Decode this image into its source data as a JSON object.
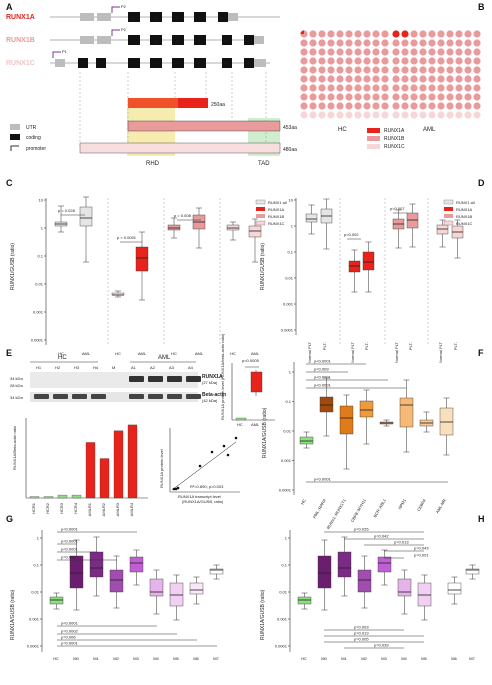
{
  "panels": {
    "A": "A",
    "B": "B",
    "C": "C",
    "D": "D",
    "E": "E",
    "F": "F",
    "G": "G",
    "H": "H"
  },
  "colors": {
    "runx1a": "#e8231c",
    "runx1b": "#e99a9a",
    "runx1c": "#f6d6d6",
    "rhd": "#f1e08a",
    "tad": "#b6e2b9",
    "hc": "#8ce07f",
    "all": "#e5e5e5"
  },
  "panelA": {
    "isoforms": [
      "RUNX1A",
      "RUNX1B",
      "RUNX1C"
    ],
    "promoters": [
      "P2",
      "P2",
      "P1"
    ],
    "exon_labels_a": [
      "3",
      "4",
      "5",
      "6",
      "7a"
    ],
    "exon_labels_b": [
      "1",
      "2",
      "3",
      "4",
      "5",
      "6",
      "7b",
      "8"
    ],
    "exon_labels_c": [
      "1",
      "2",
      "3",
      "4",
      "5",
      "6",
      "7b",
      "8"
    ],
    "protein_sizes": [
      "250aa",
      "453aa",
      "480aa"
    ],
    "legend": [
      "UTR",
      "coding",
      "promoter"
    ],
    "domains": [
      "RHD",
      "TAD"
    ]
  },
  "panelB": {
    "groups": [
      "HC",
      "AML"
    ],
    "legend": [
      "RUNX1A",
      "RUNX1B",
      "RUNX1C"
    ]
  },
  "panelC": {
    "ylabel": "RUNX1/GUSB (ratio)",
    "yticks": [
      "10",
      "1",
      "0.1",
      "0.01",
      "0.001",
      "0.0001"
    ],
    "xlabels": [
      "HC",
      "AML",
      "HC",
      "AML",
      "HC",
      "AML",
      "HC",
      "AML"
    ],
    "pvals": [
      "p = 0.028",
      "p < 0.0001",
      "p = 0.008"
    ],
    "legend": [
      "RUNX1 all",
      "RUNX1A",
      "RUNX1B",
      "RUNX1C"
    ]
  },
  "panelD": {
    "ylabel": "RUNX1/GUSB (ratio)",
    "yticks": [
      "10",
      "1",
      "0.1",
      "0.01",
      "0.001",
      "0.0001"
    ],
    "xlabels": [
      "Normal PLT",
      "PLT-",
      "Normal PLT",
      "PLT-",
      "Normal PLT",
      "PLT-",
      "Normal PLT",
      "PLT-"
    ],
    "pvals": [
      "p=0.002",
      "p=0.007"
    ],
    "legend": [
      "RUNX1 all",
      "RUNX1A",
      "RUNX1B",
      "RUNX1C"
    ]
  },
  "panelE": {
    "groups": [
      "HC",
      "AML"
    ],
    "lanes": [
      "H1",
      "H2",
      "H3",
      "H4",
      "M",
      "A1",
      "A2",
      "A3",
      "A4"
    ],
    "markers": [
      "34 kDa",
      "28 kDa",
      "34 kDa"
    ],
    "bands": [
      "RUNX1A",
      "(27 kDa)",
      "Beta-actin",
      "(42 kDa)"
    ],
    "bar_ylabel": "RUNX1A/Beta-actin ratio",
    "bar_xlabels": [
      "HCR1",
      "HCR2",
      "HCR3",
      "HCR4",
      "AMLR1",
      "AMLR2",
      "AMLR3",
      "AMLR4"
    ],
    "bar_values": [
      0.05,
      0.05,
      0.1,
      0.1,
      1.9,
      1.35,
      2.3,
      2.5
    ],
    "inset_p": "p=0.0005",
    "inset_ylabel": "RUNX1A protein level (RUNX1A/beta-actin ratio)",
    "inset_x": [
      "HC",
      "AML"
    ],
    "scatter_r": "R²=0.890; p=0.003",
    "scatter_xlabel": "RUNX1A transcript level",
    "scatter_xlabel2": "(RUNX1A/GUSB, ratio)",
    "scatter_ylabel": "RUNX1A protein level"
  },
  "panelF": {
    "ylabel": "RUNX1A/GUSB (ratio)",
    "yticks": [
      "1",
      "0.1",
      "0.01",
      "0.001",
      "0.0001"
    ],
    "xlabels": [
      "HC",
      "PML::RARA",
      "RUNX1::RUNX1T1",
      "CBFB::MYH11",
      "BCR::ABL1",
      "NPM1",
      "CEBPA",
      "AML-MR"
    ],
    "pvals": [
      "p<0.0001",
      "p=0.009",
      "p<0.0001",
      "p<0.0001",
      "p<0.0001"
    ]
  },
  "panelG": {
    "ylabel": "RUNX1A/GUSB (ratio)",
    "yticks": [
      "1",
      "0.1",
      "0.01",
      "0.001",
      "0.0001"
    ],
    "xlabels": [
      "HC",
      "M0",
      "M1",
      "M2",
      "M3",
      "M4",
      "M5",
      "M6",
      "M7"
    ],
    "pvals": [
      "p<0.0001",
      "p<0.0001",
      "p=0.004",
      "p<0.0001",
      "p<0.0001",
      "p=0.0002",
      "p=0.006",
      "p=0.0001"
    ]
  },
  "panelH": {
    "ylabel": "RUNX1A/GUSB (ratio)",
    "yticks": [
      "1",
      "0.1",
      "0.01",
      "0.001",
      "0.0001"
    ],
    "xlabels": [
      "HC",
      "M0",
      "M1",
      "M2",
      "M3",
      "M4",
      "M5",
      "M6",
      "M7"
    ],
    "pvals": [
      "p=0.026",
      "p=0.042",
      "p=0.013",
      "p=0.043",
      "p=0.001",
      "p=0.003",
      "p=0.019",
      "p=0.005",
      "p=0.039"
    ]
  }
}
